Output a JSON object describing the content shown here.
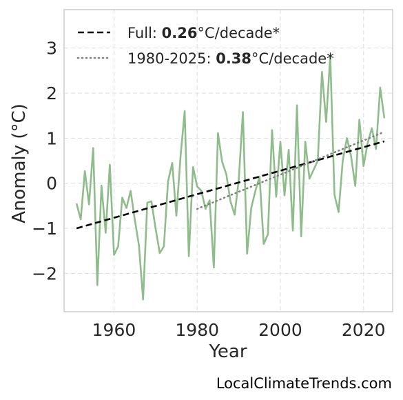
{
  "chart_data": {
    "type": "line",
    "xlabel": "Year",
    "ylabel": "Anomaly (°C)",
    "xlim": [
      1948,
      2027
    ],
    "ylim": [
      -2.85,
      3.85
    ],
    "xticks": [
      1960,
      1980,
      2000,
      2020
    ],
    "yticks": [
      -2,
      -1,
      0,
      1,
      2,
      3
    ],
    "grid": true,
    "legend_placement": "top-left",
    "series": [
      {
        "kind": "anomaly",
        "color": "#8fbc8b",
        "x": [
          1951,
          1952,
          1953,
          1954,
          1955,
          1956,
          1957,
          1958,
          1959,
          1960,
          1961,
          1962,
          1963,
          1964,
          1965,
          1966,
          1967,
          1968,
          1969,
          1970,
          1971,
          1972,
          1973,
          1974,
          1975,
          1976,
          1977,
          1978,
          1979,
          1980,
          1981,
          1982,
          1983,
          1984,
          1985,
          1986,
          1987,
          1988,
          1989,
          1990,
          1991,
          1992,
          1993,
          1994,
          1995,
          1996,
          1997,
          1998,
          1999,
          2000,
          2001,
          2002,
          2003,
          2004,
          2005,
          2006,
          2007,
          2008,
          2009,
          2010,
          2011,
          2012,
          2013,
          2014,
          2015,
          2016,
          2017,
          2018,
          2019,
          2020,
          2021,
          2022,
          2023,
          2024,
          2025
        ],
        "y": [
          -0.45,
          -0.8,
          0.27,
          -0.47,
          0.78,
          -2.26,
          -0.05,
          -1.1,
          0.41,
          -1.59,
          -1.4,
          -0.32,
          -0.55,
          -0.17,
          -0.8,
          -1.38,
          -2.58,
          -0.43,
          -0.4,
          -1.0,
          -1.55,
          -1.4,
          0.04,
          0.45,
          -0.72,
          0.6,
          1.6,
          -1.62,
          0.36,
          -0.07,
          -0.17,
          -0.57,
          -0.38,
          -1.87,
          1.11,
          0.48,
          0.2,
          -0.4,
          -0.7,
          0.08,
          1.58,
          -1.56,
          -0.55,
          -0.17,
          0.15,
          -1.35,
          -1.13,
          1.18,
          -0.3,
          0.92,
          -0.27,
          0.74,
          -1.05,
          1.73,
          -1.18,
          0.92,
          0.1,
          0.3,
          0.5,
          2.47,
          1.36,
          2.82,
          -0.25,
          -0.64,
          0.5,
          1.0,
          0.6,
          -0.06,
          1.41,
          0.38,
          0.9,
          1.22,
          0.76,
          2.12,
          1.44
        ]
      },
      {
        "kind": "trend",
        "name": "Full: 0.26°C/decade*",
        "label_prefix": "Full: ",
        "label_value": "0.26",
        "label_suffix": "°C/decade*",
        "color": "#000000",
        "style": "dashed",
        "x": [
          1951,
          2025
        ],
        "y": [
          -1.0,
          0.93
        ]
      },
      {
        "kind": "trend",
        "name": "1980-2025: 0.38°C/decade*",
        "label_prefix": "1980-2025: ",
        "label_value": "0.38",
        "label_suffix": "°C/decade*",
        "color": "#808080",
        "style": "dotted",
        "x": [
          1980,
          2025
        ],
        "y": [
          -0.57,
          1.14
        ]
      }
    ]
  },
  "credit": "LocalClimateTrends.com"
}
